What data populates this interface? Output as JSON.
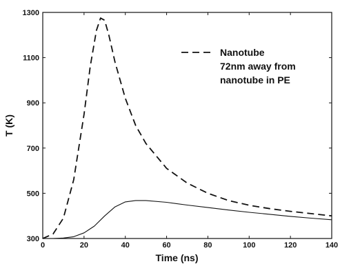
{
  "chart_data": {
    "type": "line",
    "title": "",
    "xlabel": "Time (ns)",
    "ylabel": "T (K)",
    "xlim": [
      0,
      140
    ],
    "ylim": [
      300,
      1300
    ],
    "x_ticks": [
      0,
      20,
      40,
      60,
      80,
      100,
      120,
      140
    ],
    "y_ticks": [
      300,
      500,
      700,
      900,
      1100,
      1300
    ],
    "grid": false,
    "legend_position": "top-right",
    "series": [
      {
        "name": "Nanotube",
        "style": "dashed",
        "color": "#111111",
        "points": [
          [
            0,
            300
          ],
          [
            5,
            320
          ],
          [
            10,
            390
          ],
          [
            15,
            560
          ],
          [
            20,
            850
          ],
          [
            23,
            1060
          ],
          [
            26,
            1220
          ],
          [
            28,
            1275
          ],
          [
            30,
            1265
          ],
          [
            32,
            1200
          ],
          [
            35,
            1080
          ],
          [
            40,
            920
          ],
          [
            45,
            800
          ],
          [
            50,
            720
          ],
          [
            60,
            610
          ],
          [
            70,
            545
          ],
          [
            80,
            500
          ],
          [
            90,
            468
          ],
          [
            100,
            447
          ],
          [
            110,
            432
          ],
          [
            120,
            420
          ],
          [
            130,
            410
          ],
          [
            140,
            400
          ]
        ]
      },
      {
        "name": "72nm away from nanotube in PE",
        "style": "solid",
        "color": "#111111",
        "points": [
          [
            0,
            300
          ],
          [
            5,
            300
          ],
          [
            10,
            302
          ],
          [
            15,
            308
          ],
          [
            20,
            325
          ],
          [
            25,
            355
          ],
          [
            30,
            400
          ],
          [
            35,
            440
          ],
          [
            40,
            462
          ],
          [
            45,
            468
          ],
          [
            50,
            468
          ],
          [
            60,
            460
          ],
          [
            70,
            448
          ],
          [
            80,
            437
          ],
          [
            90,
            426
          ],
          [
            100,
            416
          ],
          [
            110,
            407
          ],
          [
            120,
            398
          ],
          [
            130,
            390
          ],
          [
            140,
            383
          ]
        ]
      }
    ]
  }
}
